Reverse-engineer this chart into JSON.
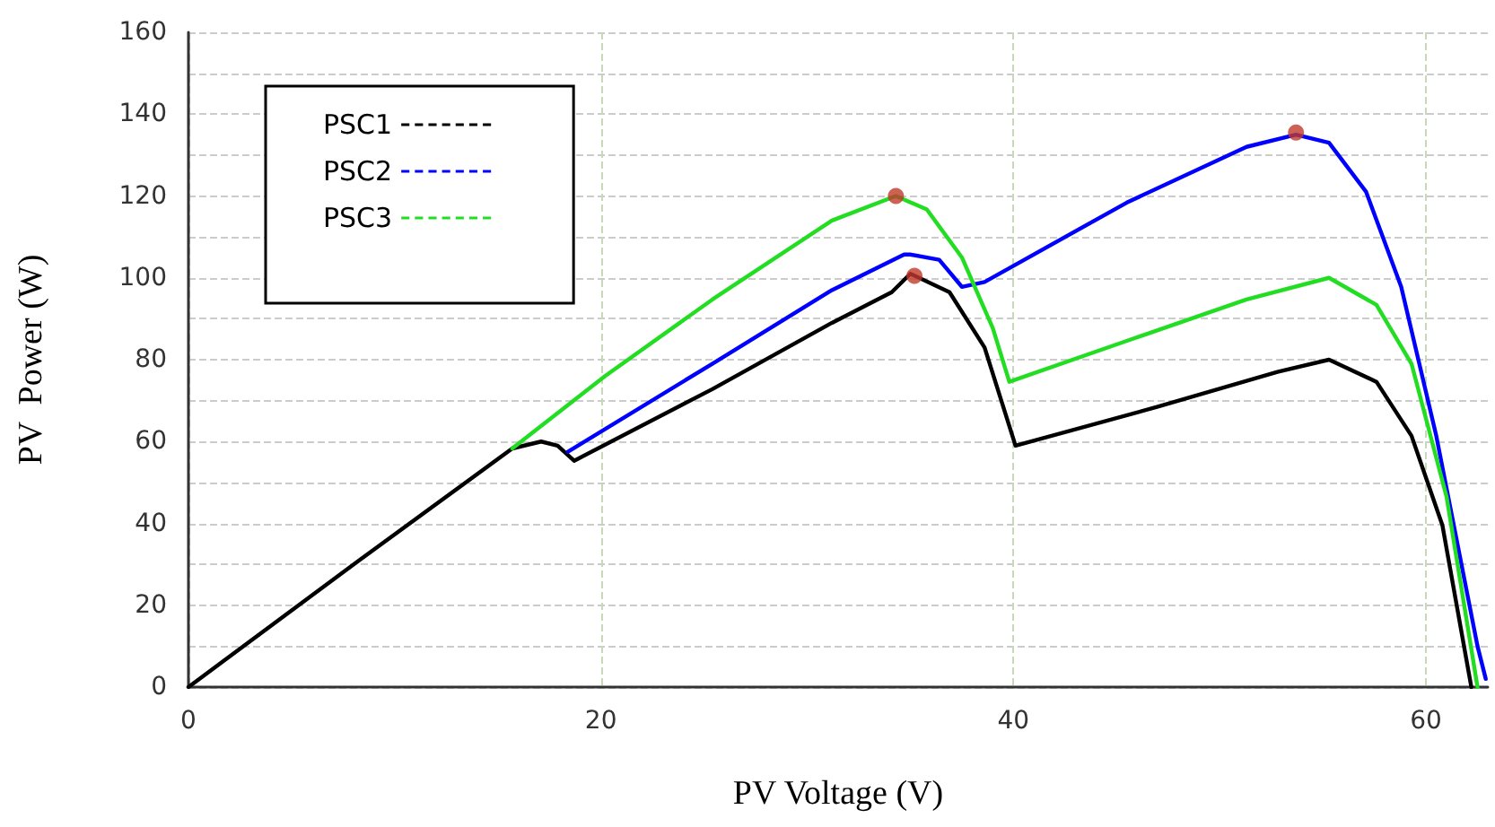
{
  "chart_data": {
    "type": "line",
    "xlabel": "PV Voltage (V)",
    "ylabel": "PV  Power (W)",
    "xlim": [
      0,
      63
    ],
    "xticks": [
      0,
      20,
      40,
      60
    ],
    "ylim": [
      0,
      160
    ],
    "yticks": [
      0,
      {
        "value": 10,
        "label": null
      },
      20,
      {
        "value": 30,
        "label": null
      },
      40,
      {
        "value": 50,
        "label": null
      },
      60,
      {
        "value": 70,
        "label": null
      },
      80,
      {
        "value": 90,
        "label": null
      },
      100,
      {
        "value": 110,
        "label": null
      },
      120,
      {
        "value": 130,
        "label": null
      },
      140,
      {
        "value": 150,
        "label": null
      },
      160
    ],
    "grid": true,
    "legend": "top left",
    "marker": "none",
    "line_style": "solid",
    "series": [
      {
        "name": "PSC1",
        "color": "#000000",
        "x": [
          0,
          8.2,
          15.7,
          17.1,
          17.9,
          18.7,
          25.4,
          31.2,
          34.1,
          35,
          36.9,
          38.6,
          40.1,
          47,
          52.8,
          55.3,
          57.6,
          59.3,
          60.8,
          62.2
        ],
        "values": [
          0,
          30.7,
          58.3,
          60,
          59,
          55.3,
          72.8,
          89,
          96.5,
          101,
          96.5,
          83,
          59,
          68.5,
          77,
          80,
          74.6,
          61.4,
          39.5,
          0
        ]
      },
      {
        "name": "PSC2",
        "color": "#0000ff",
        "x": [
          18.4,
          25.4,
          31.2,
          34.7,
          35,
          36.4,
          37.5,
          38.6,
          45.5,
          51.3,
          53.7,
          55.3,
          57.1,
          58.8,
          60.5,
          62.5,
          62.9
        ],
        "values": [
          57.5,
          79,
          97,
          105.7,
          105.7,
          104.4,
          97.8,
          99,
          118.4,
          132,
          135,
          133,
          121,
          97.8,
          61.4,
          10,
          2
        ]
      },
      {
        "name": "PSC3",
        "color": "#22dd22",
        "x": [
          15.7,
          20.2,
          25.4,
          31.2,
          34.3,
          35.8,
          37.5,
          39,
          39.8,
          45.5,
          51.3,
          55.3,
          57.6,
          59.3,
          61,
          62.5
        ],
        "values": [
          58.3,
          76,
          94.7,
          114,
          120,
          116.7,
          105,
          87.7,
          74.6,
          84.6,
          94.7,
          100,
          93.4,
          79,
          46.5,
          0
        ]
      },
      {
        "type": "scatter",
        "marker": "circle",
        "color": "#c0392b",
        "x": [
          34.3,
          35.2,
          53.7
        ],
        "values": [
          120,
          100.5,
          135.5
        ]
      }
    ]
  }
}
